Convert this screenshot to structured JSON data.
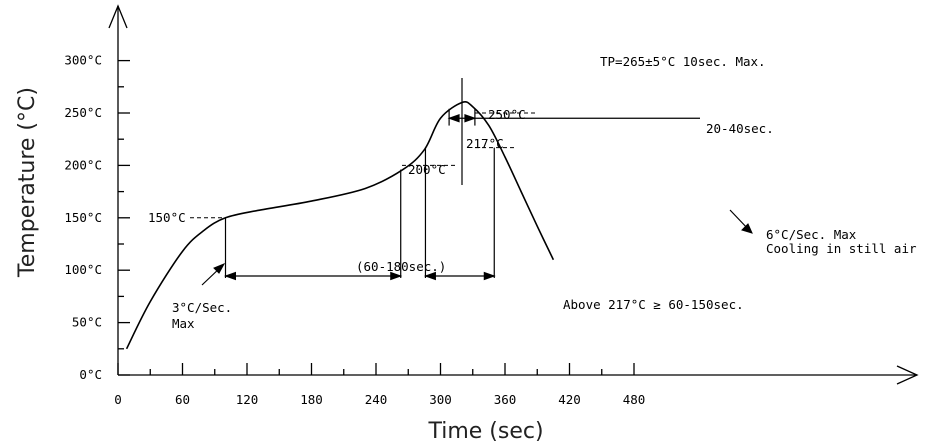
{
  "chart_data": {
    "type": "line",
    "xlabel": "Time (sec)",
    "ylabel": "Temperature (°C)",
    "xlim": [
      0,
      500
    ],
    "ylim": [
      0,
      300
    ],
    "x_ticks": [
      0,
      60,
      120,
      180,
      240,
      300,
      360,
      420,
      480
    ],
    "x_tick_labels": [
      "0",
      "60",
      "120",
      "180",
      "240",
      "300",
      "360",
      "420",
      "480"
    ],
    "y_ticks": [
      0,
      50,
      100,
      150,
      200,
      250,
      300
    ],
    "y_tick_labels": [
      "0°C",
      "50°C",
      "100°C",
      "150°C",
      "200°C",
      "250°C",
      "300°C"
    ],
    "series": [
      {
        "x": [
          8,
          30,
          60,
          80,
          100,
          130,
          180,
          230,
          265,
          285,
          300,
          320,
          330,
          345,
          360,
          375,
          390,
          405
        ],
        "y": [
          25,
          70,
          118,
          138,
          150,
          157,
          166,
          178,
          196,
          215,
          245,
          260,
          256,
          238,
          208,
          175,
          142,
          110
        ]
      }
    ],
    "annotations": {
      "peak": "TP=265±5°C  10sec. Max.",
      "t250": "250°C",
      "t217": "217°C",
      "t200": "200°C",
      "t150": "150°C",
      "window_20_40": "20-40sec.",
      "soak": "(60-180sec.)",
      "above_217": "Above 217°C ≥ 60-150sec.",
      "ramp_up_1": "3°C/Sec.",
      "ramp_up_2": "Max",
      "cool_1": "6°C/Sec. Max",
      "cool_2": "Cooling in still air"
    }
  }
}
